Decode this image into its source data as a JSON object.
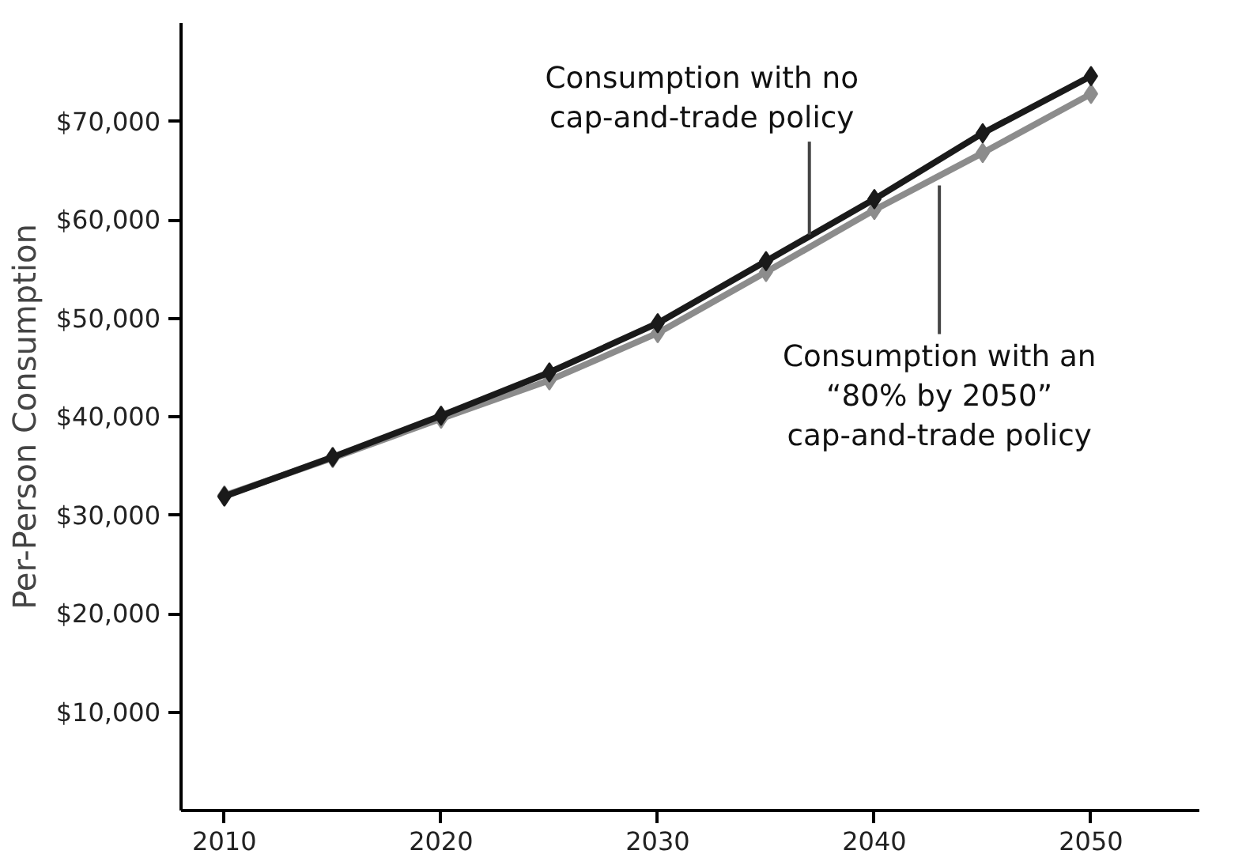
{
  "chart_data": {
    "type": "line",
    "ylabel": "Per-Person Consumption",
    "x": [
      2010,
      2015,
      2020,
      2025,
      2030,
      2035,
      2040,
      2045,
      2050
    ],
    "series": [
      {
        "color": "#8c8c8c",
        "values": [
          32000,
          35800,
          39800,
          43700,
          48500,
          54700,
          61000,
          66800,
          72800
        ]
      },
      {
        "color": "#1a1a1a",
        "values": [
          31900,
          35900,
          40100,
          44500,
          49500,
          55800,
          62100,
          68800,
          74600
        ]
      }
    ],
    "xlim": [
      2008,
      2055
    ],
    "xticks": [
      2010,
      2020,
      2030,
      2040,
      2050
    ],
    "ylim": [
      0,
      80000
    ],
    "yticks": [
      {
        "value": 10000,
        "label": "$10,000"
      },
      {
        "value": 20000,
        "label": "$20,000"
      },
      {
        "value": 30000,
        "label": "$30,000"
      },
      {
        "value": 40000,
        "label": "$40,000"
      },
      {
        "value": 50000,
        "label": "$50,000"
      },
      {
        "value": 60000,
        "label": "$60,000"
      },
      {
        "value": 70000,
        "label": "$70,000"
      }
    ],
    "annotations": [
      {
        "text": "Consumption with no\ncap-and-trade policy",
        "x": 2037,
        "y": 58500
      },
      {
        "text": "Consumption with an\n“80% by 2050”\ncap-and-trade policy",
        "x": 2043,
        "y": 63500
      }
    ],
    "grid": false,
    "marker": "diamond",
    "line_style": "solid"
  }
}
